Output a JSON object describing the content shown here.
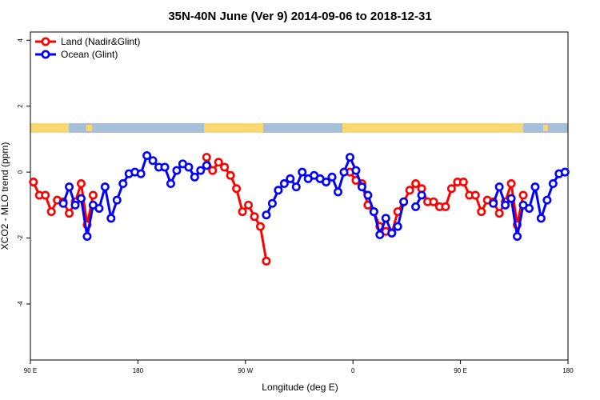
{
  "chart_data": {
    "type": "line",
    "title": "35N-40N June (Ver 9)   2014-09-06 to 2018-12-31",
    "x_label": "Longitude (deg E)",
    "y_label": "XCO2 - MLO trend (ppm)",
    "x": [
      92.5,
      97.5,
      102.5,
      107.5,
      112.5,
      117.5,
      122.5,
      127.5,
      132.5,
      137.5,
      142.5,
      147.5,
      152.5,
      157.5,
      162.5,
      167.5,
      172.5,
      177.5,
      182.5,
      187.5,
      192.5,
      197.5,
      202.5,
      207.5,
      212.5,
      217.5,
      222.5,
      227.5,
      232.5,
      237.5,
      242.5,
      247.5,
      252.5,
      257.5,
      262.5,
      267.5,
      272.5,
      277.5,
      282.5,
      287.5,
      292.5,
      297.5,
      302.5,
      307.5,
      312.5,
      317.5,
      322.5,
      327.5,
      332.5,
      337.5,
      342.5,
      347.5,
      352.5,
      357.5,
      362.5,
      367.5,
      372.5,
      377.5,
      382.5,
      387.5,
      392.5,
      397.5,
      402.5,
      407.5,
      412.5,
      417.5,
      422.5,
      427.5,
      432.5,
      437.5,
      442.5,
      447.5,
      452.5,
      457.5,
      462.5,
      467.5,
      472.5,
      477.5,
      482.5,
      487.5,
      492.5,
      497.5,
      502.5,
      507.5,
      512.5,
      517.5,
      522.5,
      527.5,
      532.5,
      537.5
    ],
    "series": [
      {
        "name": "Land (Nadir&Glint)",
        "color": "#ff0000",
        "values": [
          -0.3,
          -0.7,
          -0.7,
          -1.2,
          -0.85,
          -0.9,
          -1.25,
          -0.9,
          -0.35,
          -1.6,
          -0.7,
          null,
          null,
          null,
          null,
          null,
          null,
          null,
          null,
          null,
          null,
          null,
          null,
          null,
          null,
          null,
          null,
          null,
          null,
          0.45,
          0.05,
          0.3,
          0.15,
          -0.1,
          -0.5,
          -1.2,
          -1.0,
          -1.35,
          -1.65,
          -2.7,
          null,
          null,
          null,
          null,
          null,
          null,
          null,
          null,
          null,
          null,
          null,
          null,
          null,
          0.0,
          -0.25,
          -0.35,
          -1.0,
          -1.2,
          -1.65,
          -1.8,
          -1.85,
          -1.2,
          -0.9,
          -0.55,
          -0.35,
          -0.5,
          -0.9,
          -0.9,
          -1.05,
          -1.05,
          -0.5,
          -0.3,
          -0.3,
          -0.7,
          -0.7,
          -1.2,
          -0.85,
          -0.9,
          -1.25,
          -0.9,
          -0.35,
          -1.6,
          -0.7,
          null,
          null,
          null,
          null,
          null,
          null,
          null
        ]
      },
      {
        "name": "Ocean (Glint)",
        "color": "#0000ff",
        "values": [
          null,
          null,
          null,
          null,
          null,
          -0.95,
          -0.45,
          -1.0,
          -0.8,
          -1.95,
          -1.0,
          -1.1,
          -0.45,
          -1.4,
          -0.85,
          -0.35,
          -0.05,
          0.0,
          -0.05,
          0.5,
          0.35,
          0.15,
          0.15,
          -0.35,
          0.05,
          0.25,
          0.15,
          -0.15,
          0.05,
          0.2,
          null,
          null,
          null,
          null,
          null,
          null,
          null,
          null,
          null,
          -1.3,
          -0.95,
          -0.55,
          -0.35,
          -0.2,
          -0.45,
          0.0,
          -0.2,
          -0.1,
          -0.2,
          -0.3,
          -0.15,
          -0.6,
          0.0,
          0.45,
          0.05,
          -0.45,
          -0.7,
          -1.2,
          -1.9,
          -1.4,
          -1.85,
          -1.65,
          -0.9,
          null,
          -1.05,
          -0.7,
          null,
          null,
          null,
          null,
          null,
          null,
          null,
          null,
          null,
          null,
          null,
          -0.95,
          -0.45,
          -1.0,
          -0.8,
          -1.95,
          -1.0,
          -1.1,
          -0.45,
          -1.4,
          -0.85,
          -0.35,
          -0.05,
          0.0
        ]
      }
    ],
    "xlim": [
      90,
      540
    ],
    "xticks": [
      {
        "value": 90,
        "label": "90 E"
      },
      180,
      {
        "value": 270,
        "label": "90 W"
      },
      {
        "value": 360,
        "label": "0"
      },
      {
        "value": 450,
        "label": "90 E"
      },
      {
        "value": 540,
        "label": "180"
      }
    ],
    "ylim": [
      -5.7,
      4.25
    ],
    "yticks": [
      -4,
      -2,
      0,
      2,
      4
    ],
    "legend": "top-left"
  }
}
